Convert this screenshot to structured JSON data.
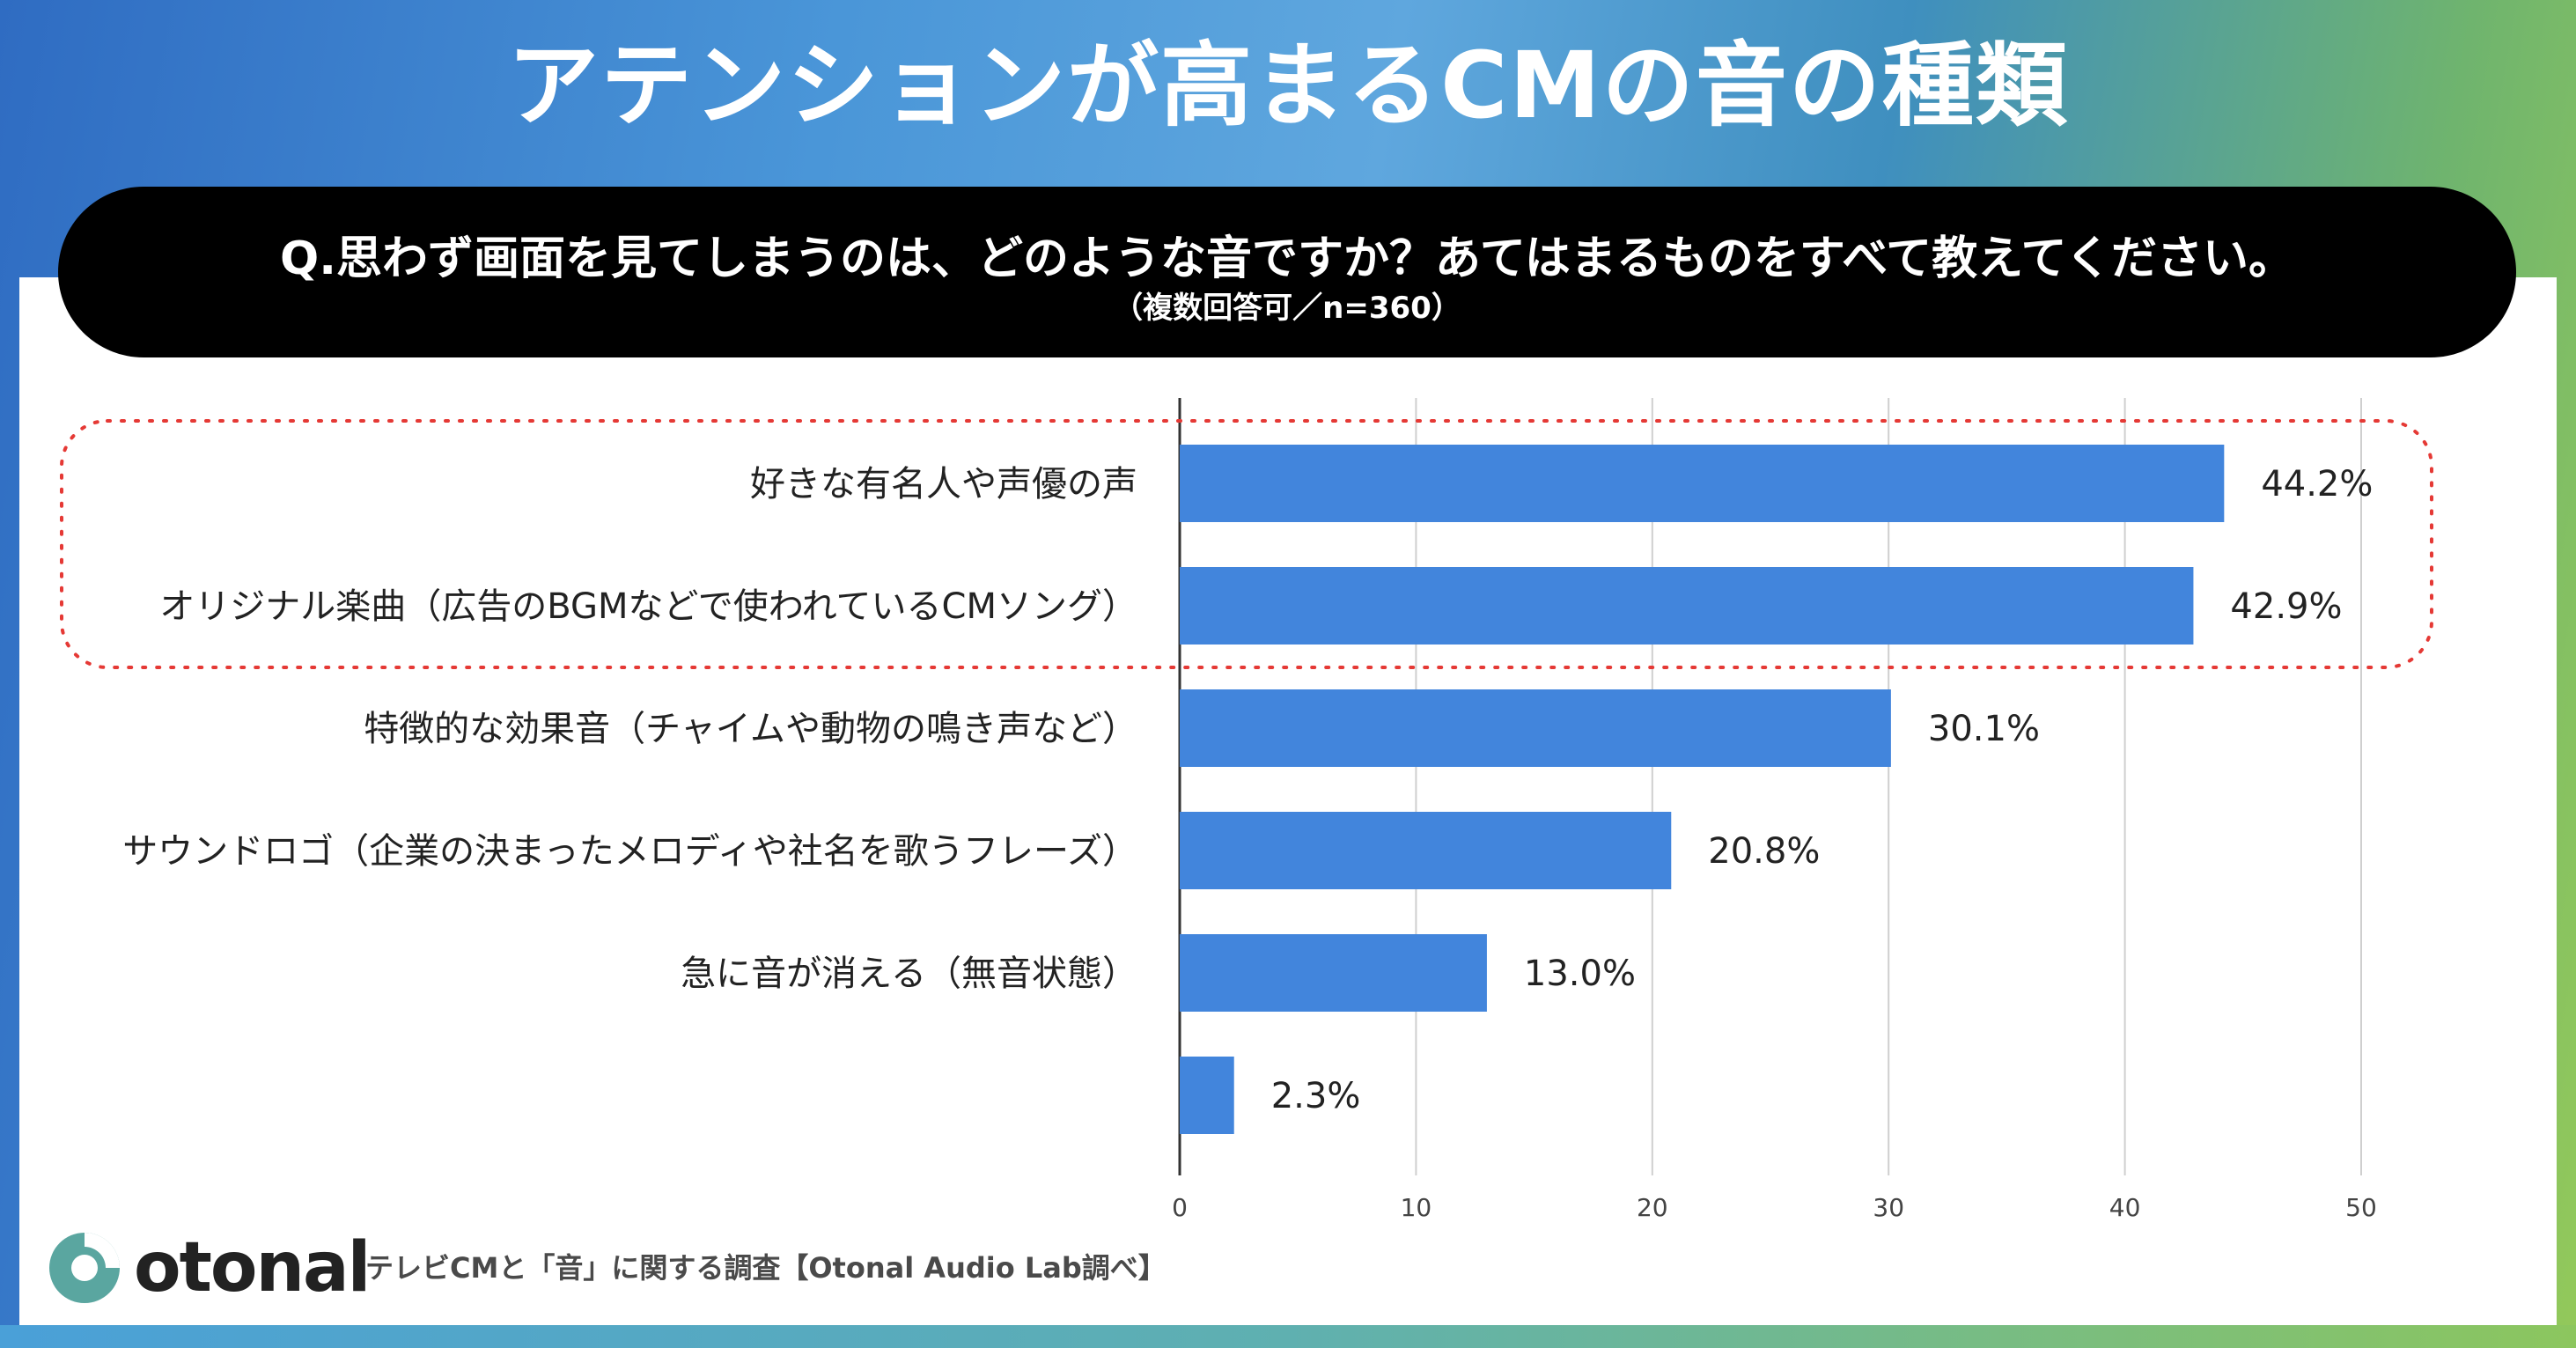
{
  "title": "アテンションが高まるCMの音の種類",
  "question": "Q.思わず画面を見てしまうのは、どのような音ですか？あてはまるものをすべて教えてください。",
  "question_note": "（複数回答可／n=360）",
  "footer": {
    "brand": "otonal",
    "source": "テレビCMと「音」に関する調査【Otonal Audio Lab調べ】"
  },
  "colors": {
    "bar": "#4285dc",
    "highlight": "#e53935",
    "question_bg": "#000000"
  },
  "chart_data": {
    "type": "bar",
    "orientation": "horizontal",
    "categories": [
      "好きな有名人や声優の声",
      "オリジナル楽曲（広告のBGMなどで使われているCMソング）",
      "特徴的な効果音（チャイムや動物の鳴き声など）",
      "サウンドロゴ（企業の決まったメロディや社名を歌うフレーズ）",
      "急に音が消える（無音状態）",
      ""
    ],
    "values": [
      44.2,
      42.9,
      30.1,
      20.8,
      13.0,
      2.3
    ],
    "value_labels": [
      "44.2%",
      "42.9%",
      "30.1%",
      "20.8%",
      "13.0%",
      "2.3%"
    ],
    "xlim": [
      0,
      50
    ],
    "xticks": [
      0,
      10,
      20,
      30,
      40,
      50
    ],
    "grid": true,
    "highlighted_categories": [
      0,
      1
    ]
  }
}
